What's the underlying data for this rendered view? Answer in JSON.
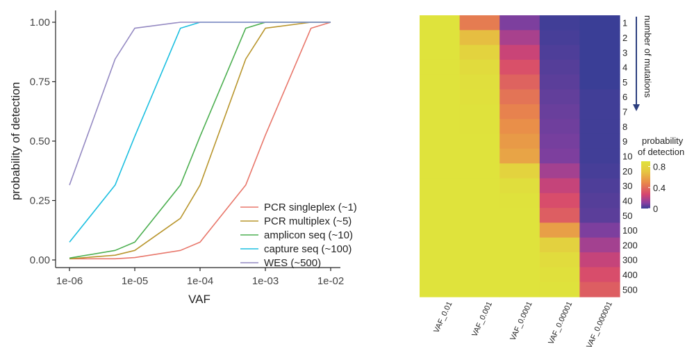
{
  "chart_data": [
    {
      "type": "line",
      "xscale": "log",
      "xlabel": "VAF",
      "ylabel": "probability of detection",
      "x": [
        1e-06,
        5e-06,
        1e-05,
        5e-05,
        0.0001,
        0.0005,
        0.001,
        0.005,
        0.01
      ],
      "xlim": [
        1e-06,
        0.01
      ],
      "ylim": [
        0,
        1
      ],
      "xticks": [
        "1e-06",
        "1e-05",
        "1e-04",
        "1e-03",
        "1e-02"
      ],
      "yticks": [
        "0.00",
        "0.25",
        "0.50",
        "0.75",
        "1.00"
      ],
      "legend_position": "bottom-right",
      "series": [
        {
          "name": "PCR singleplex (~1)",
          "color": "#e8766a",
          "values": [
            0.005,
            0.005,
            0.01,
            0.04,
            0.075,
            0.315,
            0.525,
            0.975,
            1.0
          ]
        },
        {
          "name": "PCR multiplex (~5)",
          "color": "#b8952c",
          "values": [
            0.005,
            0.02,
            0.04,
            0.175,
            0.315,
            0.845,
            0.975,
            1.0,
            1.0
          ]
        },
        {
          "name": "amplicon seq (~10)",
          "color": "#4caf50",
          "values": [
            0.008,
            0.04,
            0.075,
            0.315,
            0.52,
            0.975,
            1.0,
            1.0,
            1.0
          ]
        },
        {
          "name": "capture seq (~100)",
          "color": "#1bbfe0",
          "values": [
            0.075,
            0.315,
            0.52,
            0.975,
            1.0,
            1.0,
            1.0,
            1.0,
            1.0
          ]
        },
        {
          "name": "WES (~500)",
          "color": "#9489c2",
          "values": [
            0.315,
            0.845,
            0.975,
            1.0,
            1.0,
            1.0,
            1.0,
            1.0,
            1.0
          ]
        }
      ]
    },
    {
      "type": "heatmap",
      "columns": [
        "VAF_0.01",
        "VAF_0.001",
        "VAF_0.0001",
        "VAF_0.00001",
        "VAF_0.000001"
      ],
      "rows": [
        "1",
        "2",
        "3",
        "4",
        "5",
        "6",
        "7",
        "8",
        "9",
        "10",
        "20",
        "30",
        "40",
        "50",
        "100",
        "200",
        "300",
        "400",
        "500"
      ],
      "row_axis_label": "number of mutations",
      "legend_title": "probability of detection",
      "legend_ticks": [
        "0.8",
        "0.4",
        "0"
      ],
      "legend_values": [
        0.8,
        0.4,
        0
      ],
      "values": [
        [
          1.0,
          0.5,
          0.1,
          0.01,
          0.0
        ],
        [
          1.0,
          0.75,
          0.19,
          0.02,
          0.0
        ],
        [
          1.0,
          0.88,
          0.27,
          0.03,
          0.0
        ],
        [
          1.0,
          0.94,
          0.34,
          0.04,
          0.0
        ],
        [
          1.0,
          0.97,
          0.41,
          0.05,
          0.0
        ],
        [
          1.0,
          0.98,
          0.47,
          0.06,
          0.01
        ],
        [
          1.0,
          0.99,
          0.52,
          0.07,
          0.01
        ],
        [
          1.0,
          0.99,
          0.57,
          0.08,
          0.01
        ],
        [
          1.0,
          1.0,
          0.61,
          0.09,
          0.01
        ],
        [
          1.0,
          1.0,
          0.65,
          0.1,
          0.01
        ],
        [
          1.0,
          1.0,
          0.88,
          0.18,
          0.02
        ],
        [
          1.0,
          1.0,
          0.96,
          0.26,
          0.03
        ],
        [
          1.0,
          1.0,
          0.99,
          0.33,
          0.04
        ],
        [
          1.0,
          1.0,
          1.0,
          0.39,
          0.05
        ],
        [
          1.0,
          1.0,
          1.0,
          0.63,
          0.1
        ],
        [
          1.0,
          1.0,
          1.0,
          0.86,
          0.18
        ],
        [
          1.0,
          1.0,
          1.0,
          0.95,
          0.26
        ],
        [
          1.0,
          1.0,
          1.0,
          0.98,
          0.33
        ],
        [
          1.0,
          1.0,
          1.0,
          0.99,
          0.39
        ]
      ]
    }
  ]
}
